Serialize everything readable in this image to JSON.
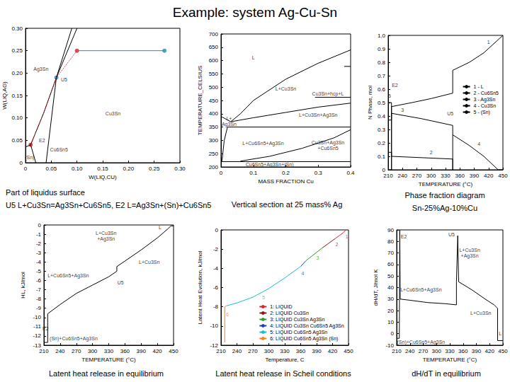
{
  "title": "Example: system Ag-Cu-Sn",
  "chart_data": [
    {
      "type": "line",
      "caption": [
        "Part of liquidus surface",
        "U5 L+Cu3Sn=Ag3Sn+Cu6Sn5, E2 L=Ag3Sn+(Sn)+Cu6Sn5"
      ],
      "x_label": "W(LIQ,CU)",
      "y_label": "W(LIQ,AG)",
      "xlim": [
        0,
        0.3
      ],
      "ylim": [
        0,
        0.3
      ],
      "xticks": [
        0,
        0.05,
        {
          "value": 0.1,
          "label": "0.10"
        },
        0.15,
        {
          "value": 0.2,
          "label": "0.20"
        },
        0.25,
        {
          "value": 0.3,
          "label": "0.30"
        }
      ],
      "yticks": [
        0,
        0.05,
        {
          "value": 0.1,
          "label": "0.10"
        },
        0.15,
        {
          "value": 0.2,
          "label": "0.20"
        },
        0.25,
        {
          "value": 0.3,
          "label": "0.30"
        }
      ],
      "grid": false,
      "series": [
        {
          "color": "#000000",
          "line_style": "solid",
          "values": [
            [
              0.1,
              0.3
            ],
            [
              0.06,
              0.19
            ],
            [
              0.035,
              0.11
            ],
            [
              0.01,
              0.04
            ]
          ]
        },
        {
          "color": "#000000",
          "line_style": "solid",
          "values": [
            [
              0.04,
              0
            ],
            [
              0.06,
              0.19
            ],
            [
              0.09,
              0.3
            ]
          ]
        },
        {
          "color": "#000000",
          "line_style": "solid",
          "values": [
            [
              0,
              0.035
            ],
            [
              0.01,
              0.04
            ],
            [
              0.02,
              0
            ]
          ]
        },
        {
          "color": "#d62020",
          "line_style": "dotted",
          "values": [
            [
              0.01,
              0.04
            ],
            [
              0.035,
              0.11
            ],
            [
              0.06,
              0.19
            ],
            [
              0.1,
              0.25
            ]
          ]
        },
        {
          "color": "#2a8ab8",
          "line_style": "solid",
          "values": [
            [
              0.1,
              0.25
            ],
            [
              0.27,
              0.25
            ]
          ]
        },
        {
          "type": "scatter",
          "color": "#d62020",
          "marker": "circle",
          "values": [
            [
              0.01,
              0.04
            ],
            [
              0.1,
              0.25
            ]
          ]
        },
        {
          "type": "scatter",
          "color": "#2a8ab8",
          "marker": "circle",
          "values": [
            [
              0.06,
              0.19
            ],
            [
              0.27,
              0.25
            ]
          ]
        }
      ],
      "annotations": [
        {
          "text": "Ag3Sn",
          "x": 0.03,
          "y": 0.21
        },
        {
          "text": "U5",
          "x": 0.075,
          "y": 0.185
        },
        {
          "text": "Cu3Sn",
          "x": 0.17,
          "y": 0.11
        },
        {
          "text": "E2",
          "x": 0.032,
          "y": 0.05
        },
        {
          "text": "(Sn)",
          "x": 0.008,
          "y": 0.012
        },
        {
          "text": "Cu6Sn5",
          "x": 0.065,
          "y": 0.03
        }
      ]
    },
    {
      "type": "line",
      "caption": [
        "Vertical section at 25 mass% Ag"
      ],
      "x_label": "MASS FRACTION Cu",
      "y_label": "TEMPERATURE_CELSIUS",
      "xlim": [
        0,
        0.4
      ],
      "ylim": [
        200,
        700
      ],
      "xticks": [
        0,
        0.1,
        0.2,
        0.3,
        0.4
      ],
      "yticks": [
        200,
        250,
        300,
        350,
        400,
        450,
        500,
        550,
        600,
        650,
        700
      ],
      "grid": false,
      "series": [
        {
          "color": "#000000",
          "values": [
            [
              0,
              390
            ],
            [
              0.03,
              370
            ],
            [
              0.06,
              400
            ],
            [
              0.1,
              450
            ],
            [
              0.2,
              530
            ],
            [
              0.3,
              590
            ],
            [
              0.4,
              640
            ]
          ]
        },
        {
          "color": "#000000",
          "values": [
            [
              0.03,
              370
            ],
            [
              0.1,
              385
            ],
            [
              0.2,
              405
            ],
            [
              0.3,
              425
            ],
            [
              0.4,
              440
            ]
          ]
        },
        {
          "color": "#000000",
          "values": [
            [
              0.29,
              462
            ],
            [
              0.4,
              462
            ]
          ]
        },
        {
          "color": "#000000",
          "values": [
            [
              0.38,
              578
            ],
            [
              0.4,
              578
            ]
          ]
        },
        {
          "color": "#000000",
          "values": [
            [
              0.02,
              350
            ],
            [
              0.4,
              350
            ]
          ]
        },
        {
          "color": "#000000",
          "values": [
            [
              0.06,
              222
            ],
            [
              0.15,
              240
            ],
            [
              0.25,
              270
            ],
            [
              0.35,
              310
            ],
            [
              0.4,
              340
            ]
          ]
        },
        {
          "color": "#000000",
          "values": [
            [
              0,
              220
            ],
            [
              0.4,
              220
            ]
          ]
        },
        {
          "color": "#000000",
          "values": [
            [
              0.02,
              350
            ],
            [
              0.01,
              300
            ],
            [
              0.003,
              222
            ]
          ]
        }
      ],
      "annotations": [
        {
          "text": "L",
          "x": 0.1,
          "y": 610
        },
        {
          "text": "L+Cu3Sn",
          "x": 0.2,
          "y": 495
        },
        {
          "text": "Cu3Sn+hcp+L",
          "x": 0.33,
          "y": 475
        },
        {
          "text": "L+Cu3Sn+Ag3Sn",
          "x": 0.3,
          "y": 395
        },
        {
          "text": "L+\nAg3Sn",
          "x": 0.025,
          "y": 372
        },
        {
          "text": "L+Cu6Sn5+Ag3Sn",
          "x": 0.13,
          "y": 290
        },
        {
          "text": "Cu3Sn+Ag3Sn\n+Cu6Sn5",
          "x": 0.33,
          "y": 280
        },
        {
          "text": "Cu6Sn5+Ag3Sn+(Sn)",
          "x": 0.15,
          "y": 210
        }
      ]
    },
    {
      "type": "line",
      "caption": [
        "Phase fraction diagram",
        "Sn-25%Ag-10%Cu"
      ],
      "x_label": "TEMPERATURE (°C)",
      "y_label": "N Phase, mol",
      "xlim": [
        210,
        450
      ],
      "ylim": [
        0,
        1
      ],
      "xticks": [
        210,
        240,
        270,
        300,
        330,
        360,
        390,
        420,
        450
      ],
      "yticks": [
        0,
        0.1,
        0.2,
        0.3,
        0.4,
        0.5,
        0.6,
        0.7,
        0.8,
        0.9,
        {
          "value": 1,
          "label": "1.0"
        }
      ],
      "grid": false,
      "legend": "right",
      "series": [
        {
          "name": "1 - L",
          "color": "#000000",
          "values": [
            [
              210,
              0
            ],
            [
              217,
              0
            ],
            [
              217,
              0.47
            ],
            [
              260,
              0.5
            ],
            [
              300,
              0.53
            ],
            [
              345,
              0.57
            ],
            [
              345,
              0.74
            ],
            [
              380,
              0.8
            ],
            [
              410,
              0.87
            ],
            [
              450,
              1
            ]
          ]
        },
        {
          "name": "2 - Cu6Sn5",
          "color": "#000000",
          "values": [
            [
              210,
              0.13
            ],
            [
              217,
              0.13
            ],
            [
              217,
              0.1
            ],
            [
              345,
              0.08
            ],
            [
              345,
              0
            ]
          ]
        },
        {
          "name": "3 - Ag3Sn",
          "color": "#000000",
          "values": [
            [
              210,
              0.37
            ],
            [
              217,
              0.37
            ],
            [
              217,
              0.42
            ],
            [
              280,
              0.38
            ],
            [
              345,
              0.33
            ],
            [
              345,
              0
            ]
          ]
        },
        {
          "name": "4 - Cu3Sn",
          "color": "#000000",
          "values": [
            [
              345,
              0.26
            ],
            [
              380,
              0.18
            ],
            [
              410,
              0.1
            ],
            [
              440,
              0
            ],
            [
              450,
              0
            ]
          ]
        },
        {
          "name": "5 - (Sn)",
          "color": "#000000",
          "values": [
            [
              210,
              0.5
            ],
            [
              217,
              0.5
            ],
            [
              217,
              0
            ]
          ]
        }
      ],
      "annotations": [
        {
          "text": "1",
          "x": 420,
          "y": 0.95
        },
        {
          "text": "2",
          "x": 300,
          "y": 0.13
        },
        {
          "text": "3",
          "x": 240,
          "y": 0.445
        },
        {
          "text": "4",
          "x": 400,
          "y": 0.19
        },
        {
          "text": "5",
          "x": 213,
          "y": 0.55
        },
        {
          "text": "E2",
          "x": 224,
          "y": 0.63
        },
        {
          "text": "U5",
          "x": 340,
          "y": 0.42
        }
      ]
    },
    {
      "type": "line",
      "caption": [
        "Latent heat release in equilibrium"
      ],
      "x_label": "TEMPERATURE (°C)",
      "y_label": "HL, kJ/mol",
      "xlim": [
        210,
        450
      ],
      "ylim": [
        -13,
        0
      ],
      "xticks": [
        210,
        240,
        270,
        300,
        330,
        360,
        390,
        420,
        450
      ],
      "yticks": [
        0,
        -1,
        -2,
        -3,
        -4,
        -5,
        -6,
        -7,
        -8,
        -9,
        -10,
        -11,
        -12,
        -13
      ],
      "grid": false,
      "series": [
        {
          "color": "#000000",
          "values": [
            [
              210,
              -12.7
            ],
            [
              217,
              -12.7
            ],
            [
              217,
              -9.6
            ],
            [
              240,
              -8.6
            ],
            [
              270,
              -7.4
            ],
            [
              300,
              -6.5
            ],
            [
              330,
              -5.6
            ],
            [
              345,
              -5
            ],
            [
              345,
              -4.5
            ],
            [
              360,
              -3.9
            ],
            [
              390,
              -2.7
            ],
            [
              420,
              -1.4
            ],
            [
              440,
              -0.4
            ],
            [
              445,
              -0.1
            ],
            [
              450,
              -0.1
            ]
          ]
        }
      ],
      "annotations": [
        {
          "text": "L+Cu3Sn\n+Ag3Sn",
          "x": 325,
          "y": -1.2
        },
        {
          "text": "L",
          "x": 425,
          "y": -0.3
        },
        {
          "text": "L+Cu3Sn",
          "x": 405,
          "y": -4
        },
        {
          "text": "U5",
          "x": 352,
          "y": -6.2
        },
        {
          "text": "L+Cu6Sn5+Ag3Sn",
          "x": 255,
          "y": -5.5
        },
        {
          "text": "E2",
          "x": 213,
          "y": -11.2
        },
        {
          "text": "(Sn)+Cu6Sn5+Ag3Sn",
          "x": 265,
          "y": -12.3
        }
      ]
    },
    {
      "type": "line",
      "caption": [
        "Latent heat release in Scheil conditions"
      ],
      "x_label": "Temperature, C",
      "y_label": "Latent Heat Evolution, kJ/mol",
      "xlim": [
        210,
        450
      ],
      "ylim": [
        -12,
        0
      ],
      "xticks": [
        210,
        240,
        270,
        300,
        330,
        360,
        390,
        420,
        450
      ],
      "yticks": [
        0,
        -2,
        -4,
        -6,
        -8,
        -10,
        -12
      ],
      "grid": false,
      "legend": "lower right",
      "series": [
        {
          "name": "1: LIQUID",
          "color": "#d62728",
          "values": [
            [
              445,
              0
            ],
            [
              440,
              -0.3
            ],
            [
              425,
              -0.9
            ]
          ]
        },
        {
          "name": "2: LIQUID Cu3Sn",
          "color": "#8b1a1a",
          "values": [
            [
              425,
              -0.9
            ],
            [
              400,
              -1.9
            ]
          ]
        },
        {
          "name": "3: LIQUID Cu3Sn Ag3Sn",
          "color": "#2ca02c",
          "values": [
            [
              400,
              -1.9
            ],
            [
              370,
              -3.2
            ]
          ]
        },
        {
          "name": "4: LIQUID Cu3Sn Cu6Sn5 Ag3Sn",
          "color": "#1f3fbf",
          "values": [
            [
              370,
              -3.2
            ],
            [
              360,
              -3.8
            ]
          ]
        },
        {
          "name": "5: LIQUID Cu6Sn5 Ag3Sn",
          "color": "#17becf",
          "values": [
            [
              360,
              -3.8
            ],
            [
              330,
              -5
            ],
            [
              300,
              -6.1
            ],
            [
              270,
              -7
            ],
            [
              240,
              -7.6
            ],
            [
              220,
              -7.9
            ]
          ]
        },
        {
          "name": "6: LIQUID Cu6Sn5 Ag3Sn (Sn)",
          "color": "#ff7f0e",
          "values": [
            [
              220,
              -7.9
            ],
            [
              217,
              -8
            ],
            [
              217,
              -11.7
            ]
          ]
        }
      ],
      "annotations": [
        {
          "text": "1",
          "x": 447,
          "y": -0.7,
          "color": "#d62728"
        },
        {
          "text": "2",
          "x": 428,
          "y": -1.5,
          "color": "#8b1a1a"
        },
        {
          "text": "3",
          "x": 392,
          "y": -2.9,
          "color": "#2ca02c"
        },
        {
          "text": "4",
          "x": 364,
          "y": -4.5,
          "color": "#1f3fbf"
        },
        {
          "text": "5",
          "x": 290,
          "y": -7,
          "color": "#17becf"
        },
        {
          "text": "6",
          "x": 222,
          "y": -8.8,
          "color": "#ff7f0e"
        }
      ]
    },
    {
      "type": "line",
      "caption": [
        "dH/dT in equilibrium"
      ],
      "x_label": "TEMPERATURE (°C)",
      "y_label": "dH/dT, J/mol K",
      "xlim": [
        210,
        450
      ],
      "ylim": [
        -10,
        90
      ],
      "xticks": [
        210,
        240,
        270,
        300,
        330,
        360,
        390,
        420,
        450
      ],
      "yticks": [
        -10,
        0,
        10,
        20,
        30,
        40,
        50,
        60,
        70,
        80,
        90
      ],
      "grid": false,
      "series": [
        {
          "color": "#000000",
          "values": [
            [
              210,
              -4
            ],
            [
              216,
              -4
            ],
            [
              217,
              90
            ],
            [
              218,
              30
            ],
            [
              240,
              29
            ],
            [
              280,
              27
            ],
            [
              320,
              26
            ],
            [
              345,
              25
            ],
            [
              345,
              45
            ],
            [
              348,
              85
            ],
            [
              350,
              45
            ],
            [
              380,
              38
            ],
            [
              410,
              30
            ],
            [
              430,
              25
            ],
            [
              438,
              22
            ],
            [
              438,
              -6
            ],
            [
              450,
              -6
            ]
          ]
        }
      ],
      "annotations": [
        {
          "text": "E2",
          "x": 226,
          "y": 84
        },
        {
          "text": "U5",
          "x": 334,
          "y": 86
        },
        {
          "text": "L+Cu3Sn\n+Ag3Sn",
          "x": 375,
          "y": 70
        },
        {
          "text": "L+Cu6Sn5+Ag3Sn",
          "x": 265,
          "y": 38
        },
        {
          "text": "L+Cu3Sn",
          "x": 400,
          "y": 18
        },
        {
          "text": "L",
          "x": 444,
          "y": 0
        },
        {
          "text": "(Sn)+Cu6Sn5+Ag3Sn",
          "x": 265,
          "y": -7
        }
      ]
    }
  ]
}
